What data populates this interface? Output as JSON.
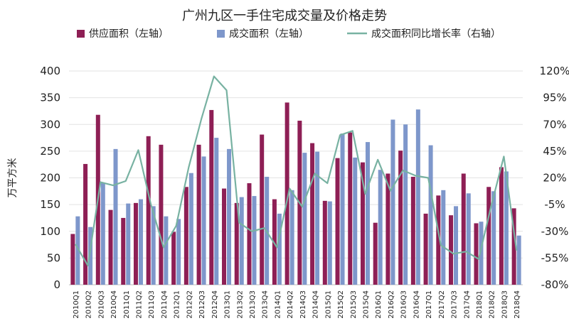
{
  "chart_data": {
    "type": "bar",
    "title": "广州九区一手住宅成交量及价格走势",
    "ylabel": "万平方米",
    "ylim": [
      0,
      400
    ],
    "y2lim": [
      -80,
      120
    ],
    "yticks": [
      "0",
      "50",
      "100",
      "150",
      "200",
      "250",
      "300",
      "350",
      "400"
    ],
    "y2ticks": [
      "-80%",
      "-55%",
      "-30%",
      "-5%",
      "20%",
      "45%",
      "70%",
      "95%",
      "120%"
    ],
    "legend_position": "top",
    "categories": [
      "2010Q1",
      "2010Q2",
      "2010Q3",
      "2010Q4",
      "2011Q1",
      "2011Q2",
      "2011Q3",
      "2011Q4",
      "2012Q1",
      "2012Q2",
      "2012Q3",
      "2012Q4",
      "2013Q1",
      "2013Q2",
      "2013Q3",
      "2013Q4",
      "2014Q1",
      "2014Q2",
      "2014Q3",
      "2014Q4",
      "2015Q1",
      "2015Q2",
      "2015Q3",
      "2015Q4",
      "2016Q1",
      "2016Q2",
      "2016Q3",
      "2016Q4",
      "2017Q1",
      "2017Q2",
      "2017Q3",
      "2017Q4",
      "2018Q1",
      "2018Q2",
      "2018Q3",
      "2018Q4"
    ],
    "series": [
      {
        "name": "供应面积（左轴）",
        "type": "bar",
        "axis": "left",
        "color": "#8e1f55",
        "values": [
          95,
          226,
          318,
          140,
          125,
          153,
          278,
          262,
          99,
          183,
          262,
          327,
          180,
          153,
          190,
          281,
          160,
          341,
          307,
          265,
          157,
          237,
          285,
          229,
          116,
          208,
          251,
          202,
          133,
          167,
          130,
          208,
          115,
          183,
          220,
          143
        ]
      },
      {
        "name": "成交面积（左轴）",
        "type": "bar",
        "axis": "left",
        "color": "#7e97cb",
        "values": [
          128,
          108,
          190,
          254,
          152,
          160,
          147,
          128,
          123,
          209,
          240,
          275,
          254,
          164,
          166,
          202,
          133,
          177,
          247,
          249,
          156,
          283,
          238,
          267,
          215,
          309,
          300,
          328,
          261,
          177,
          147,
          171,
          118,
          175,
          212,
          92
        ]
      },
      {
        "name": "成交面积同比增长率（右轴）",
        "type": "line",
        "axis": "right",
        "color": "#78b2a2",
        "values": [
          -42,
          -62,
          16,
          13,
          17,
          46,
          -5,
          -45,
          -25,
          30,
          75,
          115,
          102,
          -22,
          -30,
          -27,
          -45,
          10,
          -7,
          24,
          15,
          60,
          64,
          5,
          37,
          8,
          27,
          22,
          20,
          -43,
          -51,
          -49,
          -56,
          -6,
          40,
          -48
        ]
      }
    ]
  }
}
